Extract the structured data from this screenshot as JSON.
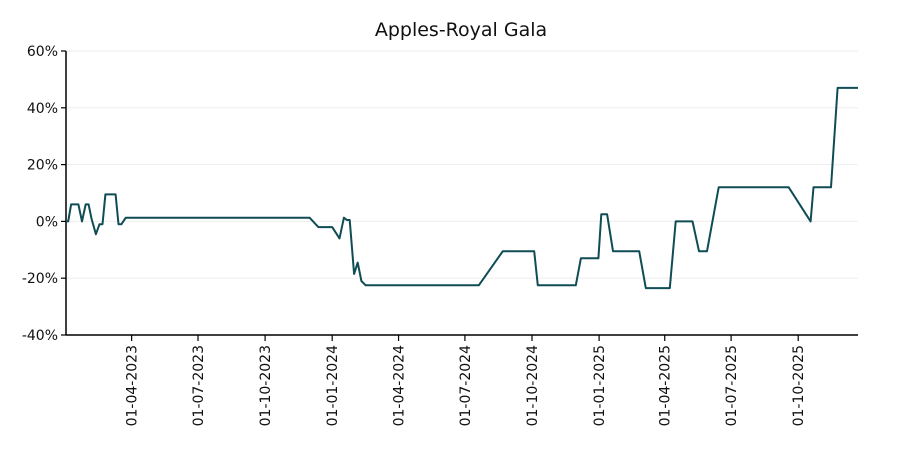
{
  "chart_data": {
    "type": "line",
    "title": "Apples-Royal Gala",
    "xlabel": "",
    "ylabel": "",
    "ylim": [
      -40,
      60
    ],
    "xlim": [
      "2023-01-01",
      "2025-12-22"
    ],
    "y_ticks": [
      -40,
      -20,
      0,
      20,
      40,
      60
    ],
    "y_tick_labels": [
      "-40%",
      "-20%",
      "0%",
      "20%",
      "40%",
      "60%"
    ],
    "x_ticks": [
      "2023-04-01",
      "2023-07-01",
      "2023-10-01",
      "2024-01-01",
      "2024-04-01",
      "2024-07-01",
      "2024-10-01",
      "2025-01-01",
      "2025-04-01",
      "2025-07-01",
      "2025-10-01"
    ],
    "x_tick_labels": [
      "01-04-2023",
      "01-07-2023",
      "01-10-2023",
      "01-01-2024",
      "01-04-2024",
      "01-07-2024",
      "01-10-2024",
      "01-01-2025",
      "01-04-2025",
      "01-07-2025",
      "01-10-2025"
    ],
    "grid": "horizontal",
    "line_color": "#0f4c54",
    "series": [
      {
        "points": [
          [
            "2023-01-01",
            0
          ],
          [
            "2023-01-04",
            0
          ],
          [
            "2023-01-08",
            6
          ],
          [
            "2023-01-15",
            6
          ],
          [
            "2023-01-18",
            6
          ],
          [
            "2023-01-23",
            0
          ],
          [
            "2023-01-28",
            6
          ],
          [
            "2023-02-01",
            6
          ],
          [
            "2023-02-05",
            1
          ],
          [
            "2023-02-11",
            -4.5
          ],
          [
            "2023-02-16",
            -1
          ],
          [
            "2023-02-20",
            -1
          ],
          [
            "2023-02-24",
            9.5
          ],
          [
            "2023-03-10",
            9.5
          ],
          [
            "2023-03-14",
            -1
          ],
          [
            "2023-03-18",
            -1
          ],
          [
            "2023-03-24",
            1.3
          ],
          [
            "2023-12-01",
            1.3
          ],
          [
            "2023-12-13",
            -2
          ],
          [
            "2024-01-01",
            -2
          ],
          [
            "2024-01-11",
            -6
          ],
          [
            "2024-01-17",
            1.3
          ],
          [
            "2024-01-21",
            0.5
          ],
          [
            "2024-01-25",
            0.5
          ],
          [
            "2024-01-31",
            -18.5
          ],
          [
            "2024-02-05",
            -14.5
          ],
          [
            "2024-02-10",
            -21
          ],
          [
            "2024-02-16",
            -22.5
          ],
          [
            "2024-07-20",
            -22.5
          ],
          [
            "2024-08-22",
            -10.5
          ],
          [
            "2024-10-04",
            -10.5
          ],
          [
            "2024-10-09",
            -22.5
          ],
          [
            "2024-11-30",
            -22.5
          ],
          [
            "2024-12-07",
            -13
          ],
          [
            "2024-12-31",
            -13
          ],
          [
            "2025-01-04",
            2.5
          ],
          [
            "2025-01-12",
            2.5
          ],
          [
            "2025-01-20",
            -10.5
          ],
          [
            "2025-02-25",
            -10.5
          ],
          [
            "2025-03-06",
            -23.5
          ],
          [
            "2025-04-08",
            -23.5
          ],
          [
            "2025-04-16",
            0
          ],
          [
            "2025-05-09",
            0
          ],
          [
            "2025-05-18",
            -10.5
          ],
          [
            "2025-05-29",
            -10.5
          ],
          [
            "2025-06-14",
            12
          ],
          [
            "2025-09-18",
            12
          ],
          [
            "2025-10-18",
            0
          ],
          [
            "2025-10-22",
            12
          ],
          [
            "2025-11-15",
            12
          ],
          [
            "2025-11-24",
            47
          ],
          [
            "2025-12-22",
            47
          ]
        ]
      }
    ]
  }
}
